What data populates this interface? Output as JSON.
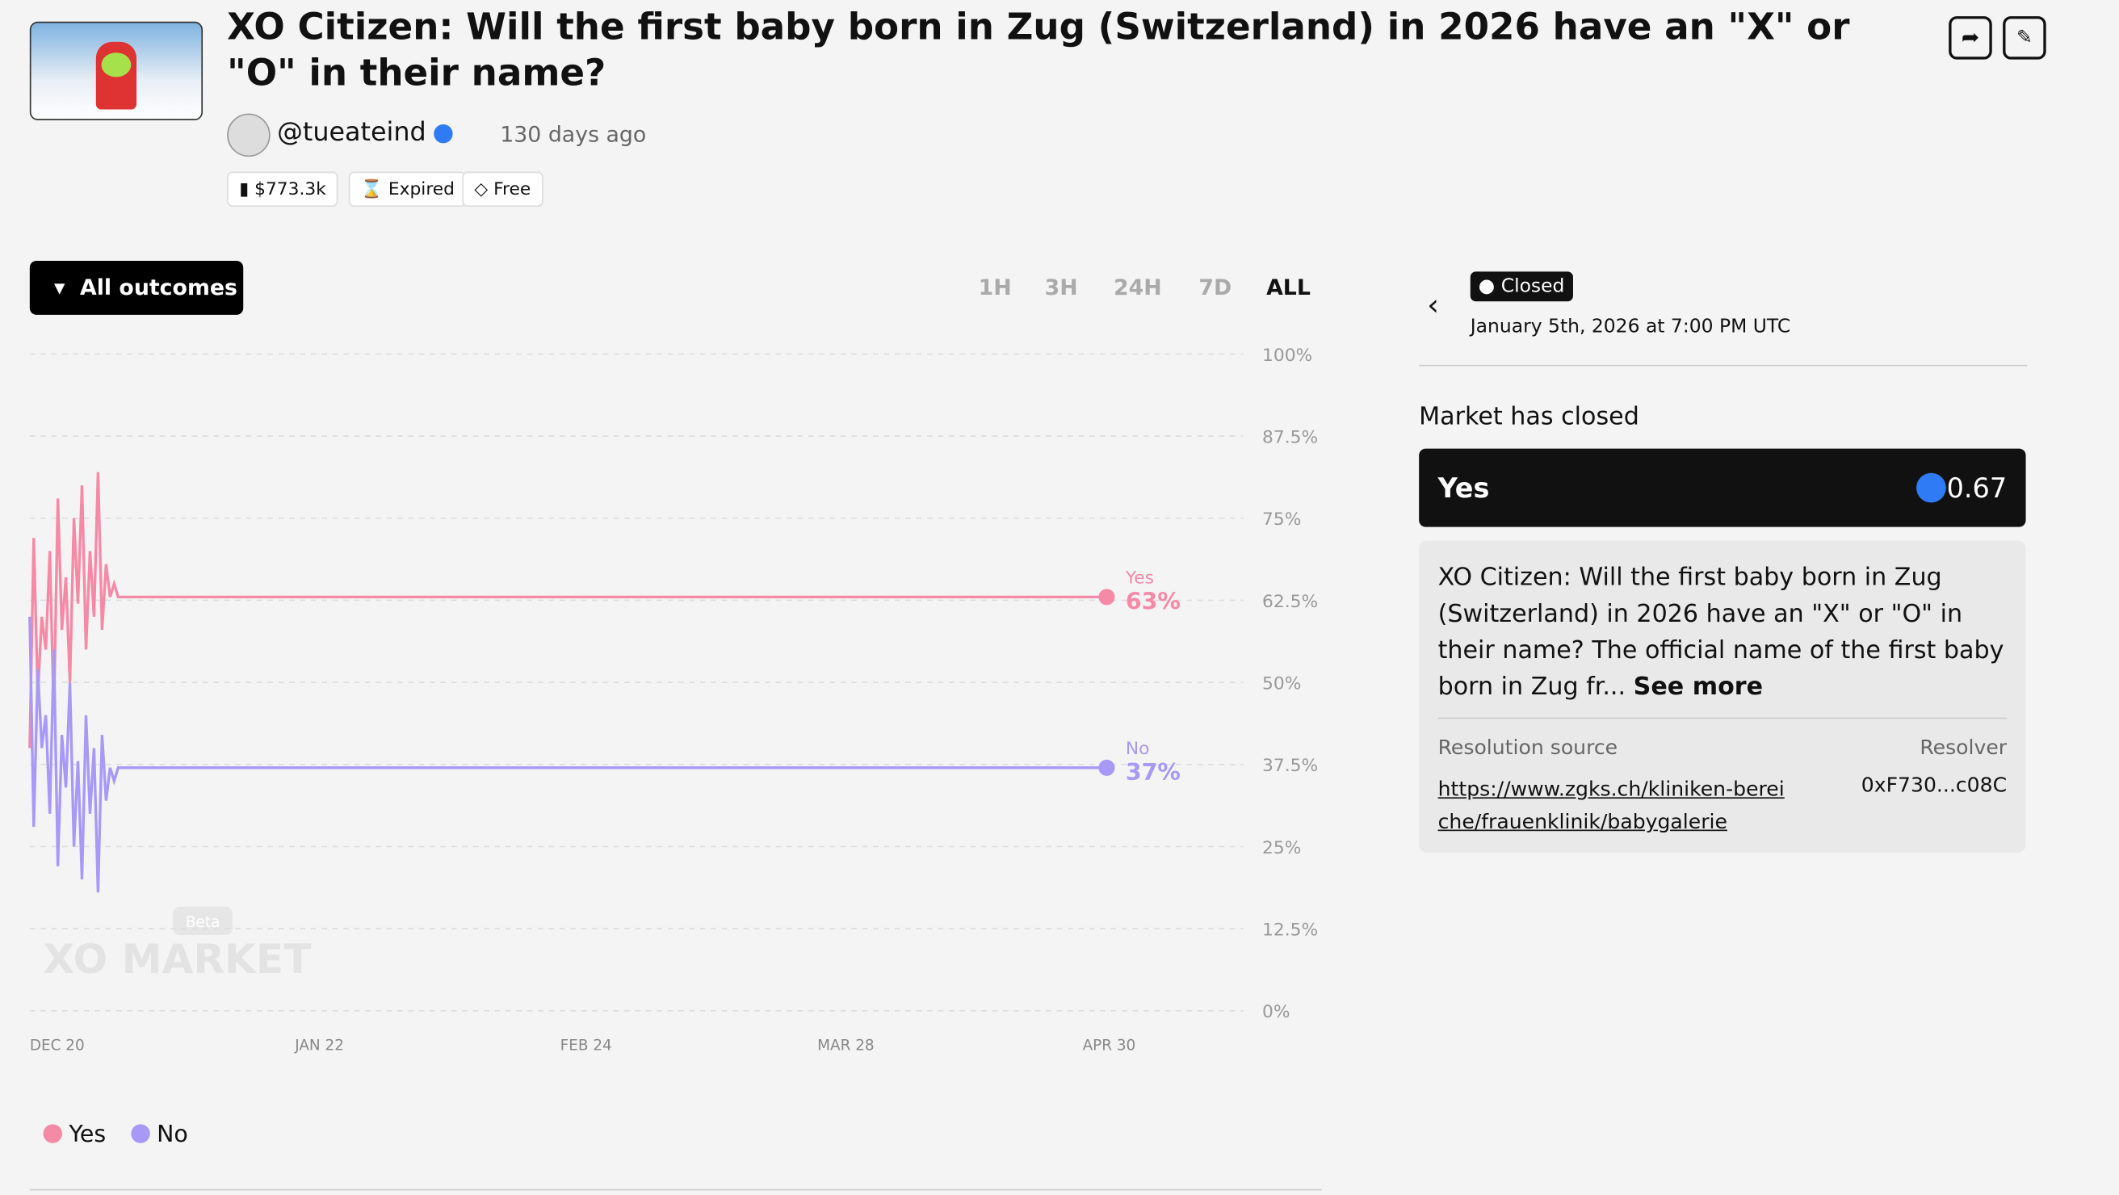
{
  "header": {
    "title": "XO Citizen: Will the first baby born in Zug (Switzerland) in 2026 have an \"X\" or \"O\" in their name?",
    "username": "@tueateind",
    "age": "130 days ago",
    "stats": [
      "$773.3k",
      "Expired",
      "Free"
    ]
  },
  "controls": {
    "filter": "All outcomes",
    "timeframes": [
      "1H",
      "3H",
      "24H",
      "7D",
      "ALL"
    ]
  },
  "chart_data": {
    "type": "line",
    "watermark": "XO MARKET",
    "badge": "Beta",
    "x": [
      0,
      0.5,
      1,
      1.5,
      2,
      2.5,
      3,
      3.5,
      4,
      4.5,
      5,
      5.5,
      6,
      6.5,
      7,
      7.5,
      8,
      8.5,
      9,
      9.5,
      10,
      10.5,
      11,
      134
    ],
    "xlim": [
      0,
      151
    ],
    "xticks": [
      {
        "value": 0,
        "label": "DEC 20"
      },
      {
        "value": 33,
        "label": "JAN 22"
      },
      {
        "value": 66,
        "label": "FEB 24"
      },
      {
        "value": 98,
        "label": "MAR 28"
      },
      {
        "value": 131,
        "label": "APR 30"
      }
    ],
    "ylim": [
      0,
      100
    ],
    "yticks": [
      {
        "value": 0,
        "label": "0%"
      },
      {
        "value": 12.5,
        "label": "12.5%"
      },
      {
        "value": 25,
        "label": "25%"
      },
      {
        "value": 37.5,
        "label": "37.5%"
      },
      {
        "value": 50,
        "label": "50%"
      },
      {
        "value": 62.5,
        "label": "62.5%"
      },
      {
        "value": 75,
        "label": "75%"
      },
      {
        "value": 87.5,
        "label": "87.5%"
      },
      {
        "value": 100,
        "label": "100%"
      }
    ],
    "grid": true,
    "series": [
      {
        "name": "Yes",
        "color": "#f58aa6",
        "values": [
          40,
          72,
          48,
          60,
          55,
          70,
          45,
          78,
          58,
          66,
          50,
          75,
          62,
          80,
          55,
          70,
          60,
          82,
          58,
          68,
          63,
          65,
          63,
          63
        ],
        "value_labels": [
          null,
          null,
          null,
          null,
          null,
          null,
          null,
          null,
          null,
          null,
          null,
          null,
          null,
          null,
          null,
          null,
          null,
          null,
          null,
          null,
          null,
          null,
          null,
          "63%"
        ]
      },
      {
        "name": "No",
        "color": "#a799f5",
        "values": [
          60,
          28,
          52,
          40,
          45,
          30,
          55,
          22,
          42,
          34,
          50,
          25,
          38,
          20,
          45,
          30,
          40,
          18,
          42,
          32,
          37,
          35,
          37,
          37
        ],
        "value_labels": [
          null,
          null,
          null,
          null,
          null,
          null,
          null,
          null,
          null,
          null,
          null,
          null,
          null,
          null,
          null,
          null,
          null,
          null,
          null,
          null,
          null,
          null,
          null,
          "37%"
        ]
      }
    ]
  },
  "sidebar": {
    "status": "Closed",
    "date": "January 5th, 2026 at 7:00 PM UTC",
    "heading": "Market has closed",
    "outcome": "Yes",
    "price": "0.67",
    "description": "XO Citizen: Will the first baby born in Zug (Switzerland) in 2026 have an \"X\" or \"O\" in their name? The official name of the first baby born in Zug fr...",
    "see_more": "See more",
    "resolution_label": "Resolution source",
    "resolution_link": "https://www.zgks.ch/kliniken-bereiche/frauenklinik/babygalerie",
    "resolver_label": "Resolver",
    "resolver": "0xF730...c08C"
  }
}
